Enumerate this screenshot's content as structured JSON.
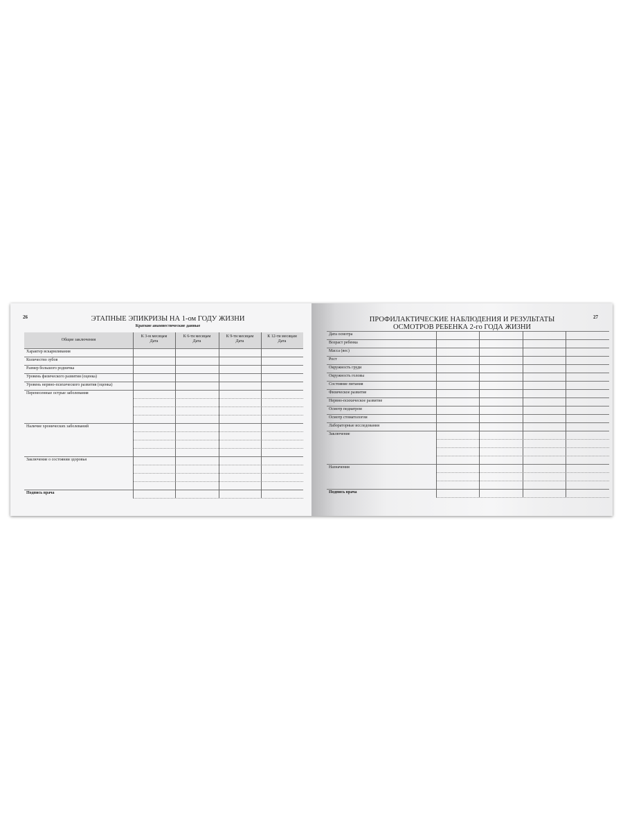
{
  "left_page": {
    "page_number": "26",
    "title": "ЭТАПНЫЕ ЭПИКРИЗЫ НА 1-ом ГОДУ ЖИЗНИ",
    "subtitle": "Краткие анамнестические данные",
    "header_label": "Общие заключения",
    "columns": [
      {
        "line1": "К 3-м месяцам",
        "line2": "Дата"
      },
      {
        "line1": "К 6-ти месяцам",
        "line2": "Дата"
      },
      {
        "line1": "К 9-ти месяцам",
        "line2": "Дата"
      },
      {
        "line1": "К 12-ти месяцам",
        "line2": "Дата"
      }
    ],
    "rows": [
      {
        "label": "Характер вскармливания",
        "lines": 1
      },
      {
        "label": "Количество зубов",
        "lines": 1
      },
      {
        "label": "Размер большого родничка",
        "lines": 1
      },
      {
        "label": "Уровень физического развития (оценка)",
        "lines": 1
      },
      {
        "label": "Уровень нервно-психического развития (оценка)",
        "lines": 1
      },
      {
        "label": "Перенесенные острые заболевания",
        "lines": 4
      },
      {
        "label": "Наличие хронических заболеваний",
        "lines": 4
      },
      {
        "label": "Заключение о состоянии здоровья",
        "lines": 4
      },
      {
        "label": "Подпись врача",
        "lines": 1,
        "bold": true
      }
    ]
  },
  "right_page": {
    "page_number": "27",
    "title_line1": "ПРОФИЛАКТИЧЕСКИЕ НАБЛЮДЕНИЯ И РЕЗУЛЬТАТЫ",
    "title_line2": "ОСМОТРОВ РЕБЕНКА 2-го ГОДА ЖИЗНИ",
    "rows": [
      {
        "label": "Дата осмотра",
        "lines": 1
      },
      {
        "label": "Возраст ребенка",
        "lines": 1
      },
      {
        "label": "Масса (вес)",
        "lines": 1
      },
      {
        "label": "Рост",
        "lines": 1
      },
      {
        "label": "Окружность груди",
        "lines": 1
      },
      {
        "label": "Окружность головы",
        "lines": 1
      },
      {
        "label": "Состояние питания",
        "lines": 1
      },
      {
        "label": "Физическое развитие",
        "lines": 1
      },
      {
        "label": "Нервно-психическое развитие",
        "lines": 1
      },
      {
        "label": "Осмотр педиатром",
        "lines": 1
      },
      {
        "label": "Осмотр стоматологом",
        "lines": 1
      },
      {
        "label": "Лабораторные исследования",
        "lines": 1
      },
      {
        "label": "Заключение",
        "lines": 4
      },
      {
        "label": "Назначения",
        "lines": 3
      },
      {
        "label": "Подпись врача",
        "lines": 1,
        "bold": true
      }
    ]
  }
}
